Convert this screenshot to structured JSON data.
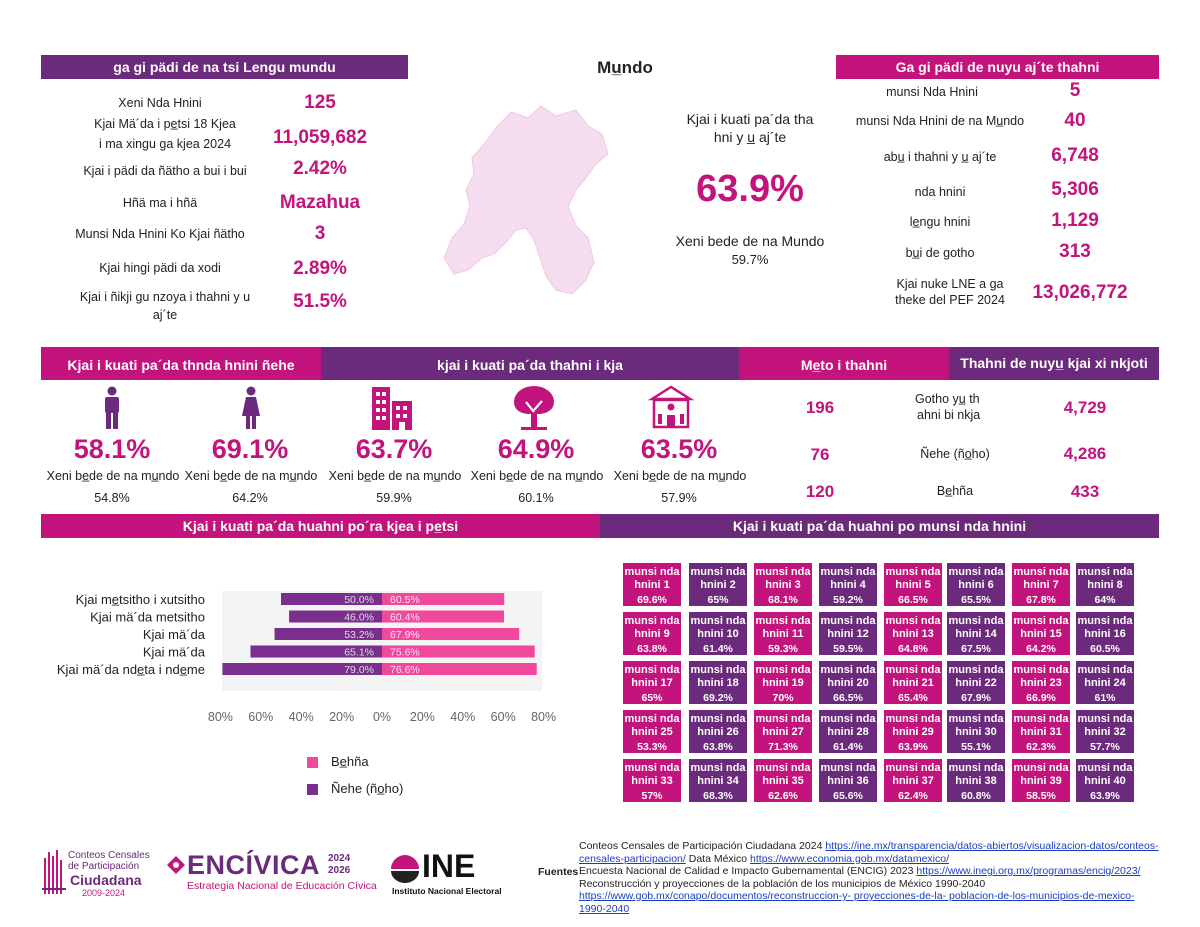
{
  "left_panel": {
    "header": "ga gi pädi de na tsi Lengu mundu",
    "rows": [
      {
        "label": "Xeni Nda Hnini",
        "value": "125"
      },
      {
        "label_lines": [
          "Kjai Mä´da i pe̲tsi 18 Kjea",
          "i ma xingu ga kjea 2024"
        ],
        "value": "11,059,682"
      },
      {
        "label": "Kjai i pädi da ñätho a bui  i bui",
        "value": "2.42%"
      },
      {
        "label": "Hñä ma i hñä",
        "value": "Mazahua"
      },
      {
        "label": "Munsi Nda Hnini Ko Kjai ñätho",
        "value": "3"
      },
      {
        "label": "Kjai hingi pädi da xodi",
        "value": "2.89%"
      },
      {
        "label_lines": [
          "Kjai i ñikji gu nzoya i thahni y u",
          "aj´te"
        ],
        "value": "51.5%"
      }
    ]
  },
  "center_panel": {
    "title": "Mu̲ndo",
    "label_lines": [
      "Kjai i kuati pa´da tha",
      "hni y u̲ aj´te"
    ],
    "value": "63.9%",
    "sub_label": "Xeni bede de na Mundo",
    "sub_value": "59.7%"
  },
  "right_panel": {
    "header": "Ga gi pädi de nuyu aj´te thahni",
    "rows": [
      {
        "label": "munsi Nda Hnini",
        "value": "5"
      },
      {
        "label": "munsi Nda Hnini de na Mu̲ndo",
        "value": "40"
      },
      {
        "label": "abu̲ i thahni y u̲ aj´te",
        "value": "6,748"
      },
      {
        "label": "nda hnini",
        "value": "5,306"
      },
      {
        "label": "le̲ngu hnini",
        "value": "1,129"
      },
      {
        "label": "bu̲i de gotho",
        "value": "313"
      },
      {
        "label_lines": [
          "Kjai nuke LNE a ga",
          "theke del PEF 2024"
        ],
        "value": "13,026,772"
      }
    ]
  },
  "row2": {
    "header_sex": "Kjai i kuati pa´da thnda hnini ñehe",
    "header_locality": "kjai i kuati pa´da thahni i kja",
    "header_meto": "Me̲to i thahni",
    "header_thahni": "Thahni de nuyu̲ kjai xi nkjoti",
    "indicators": [
      {
        "icon": "man-icon",
        "value": "58.1%",
        "label": "Xeni be̲de de na mu̲ndo",
        "sub": "54.8%"
      },
      {
        "icon": "woman-icon",
        "value": "69.1%",
        "label": "Xeni be̲de de na mu̲ndo",
        "sub": "64.2%"
      },
      {
        "icon": "city-buildings-icon",
        "value": "63.7%",
        "label": "Xeni be̲de de na mu̲ndo",
        "sub": "59.9%"
      },
      {
        "icon": "tree-icon",
        "value": "64.9%",
        "label": "Xeni be̲de de na mu̲ndo",
        "sub": "60.1%"
      },
      {
        "icon": "school-building-icon",
        "value": "63.5%",
        "label": "Xeni be̲de de na mu̲ndo",
        "sub": "57.9%"
      }
    ],
    "meto_values": [
      "196",
      "76",
      "120"
    ],
    "thahni_rows": [
      {
        "label_lines": [
          "Gotho yu̲  th",
          "ahni bi nkja"
        ],
        "value": "4,729"
      },
      {
        "label": "Ñehe (ño̲ho)",
        "value": "4,286"
      },
      {
        "label": "Be̲hña",
        "value": "433"
      }
    ]
  },
  "row3": {
    "header_age": "Kjai i kuati pa´da huahni po´ra kjea i  pe̲tsi",
    "header_muni": "Kjai i kuati pa´da huahni po munsi nda hnini"
  },
  "chart_data": {
    "type": "bar",
    "orientation": "horizontal",
    "categories": [
      "Kjai me̲tsitho i xutsitho",
      "Kjai mä´da metsitho",
      "Kjai mä´da",
      "Kjai mä´da",
      "Kjai mä´da nde̲ta  i  nde̲me"
    ],
    "series": [
      {
        "name": "Be̲hña",
        "values": [
          60.5,
          60.4,
          67.9,
          75.6,
          76.6
        ],
        "color": "#f0489b"
      },
      {
        "name": "Ñehe (ño̲ho)",
        "values": [
          50.0,
          46.0,
          53.2,
          65.1,
          79.0
        ],
        "color": "#7a2f8e"
      }
    ],
    "tick_labels": [
      "80%",
      "60%",
      "40%",
      "20%",
      "0%",
      "20%",
      "40%",
      "60%",
      "80%"
    ],
    "xlim": [
      -80,
      80
    ],
    "grid": false,
    "legend": "bottom"
  },
  "municipalities": [
    {
      "name": "munsi nda hnini 1",
      "pct": "69.6%",
      "color": "pink"
    },
    {
      "name": "munsi nda hnini 2",
      "pct": "65%",
      "color": "purple"
    },
    {
      "name": "munsi nda hnini 3",
      "pct": "68.1%",
      "color": "pink"
    },
    {
      "name": "munsi nda hnini 4",
      "pct": "59.2%",
      "color": "purple"
    },
    {
      "name": "munsi nda hnini 5",
      "pct": "66.5%",
      "color": "pink"
    },
    {
      "name": "munsi nda hnini 6",
      "pct": "65.5%",
      "color": "purple"
    },
    {
      "name": "munsi nda hnini 7",
      "pct": "67.8%",
      "color": "pink"
    },
    {
      "name": "munsi nda hnini 8",
      "pct": "64%",
      "color": "purple"
    },
    {
      "name": "munsi nda hnini 9",
      "pct": "63.8%",
      "color": "pink"
    },
    {
      "name": "munsi nda hnini 10",
      "pct": "61.4%",
      "color": "purple"
    },
    {
      "name": "munsi nda hnini 11",
      "pct": "59.3%",
      "color": "pink"
    },
    {
      "name": "munsi nda hnini 12",
      "pct": "59.5%",
      "color": "purple"
    },
    {
      "name": "munsi nda hnini 13",
      "pct": "64.8%",
      "color": "pink"
    },
    {
      "name": "munsi nda hnini 14",
      "pct": "67.5%",
      "color": "purple"
    },
    {
      "name": "munsi nda hnini 15",
      "pct": "64.2%",
      "color": "pink"
    },
    {
      "name": "munsi nda hnini 16",
      "pct": "60.5%",
      "color": "purple"
    },
    {
      "name": "munsi nda hnini 17",
      "pct": "65%",
      "color": "pink"
    },
    {
      "name": "munsi nda hnini 18",
      "pct": "69.2%",
      "color": "purple"
    },
    {
      "name": "munsi nda hnini 19",
      "pct": "70%",
      "color": "pink"
    },
    {
      "name": "munsi nda hnini 20",
      "pct": "66.5%",
      "color": "purple"
    },
    {
      "name": "munsi nda hnini 21",
      "pct": "65.4%",
      "color": "pink"
    },
    {
      "name": "munsi nda hnini 22",
      "pct": "67.9%",
      "color": "purple"
    },
    {
      "name": "munsi nda hnini 23",
      "pct": "66.9%",
      "color": "pink"
    },
    {
      "name": "munsi nda hnini 24",
      "pct": "61%",
      "color": "purple"
    },
    {
      "name": "munsi nda hnini 25",
      "pct": "53.3%",
      "color": "pink"
    },
    {
      "name": "munsi nda hnini 26",
      "pct": "63.8%",
      "color": "purple"
    },
    {
      "name": "munsi nda hnini 27",
      "pct": "71.3%",
      "color": "pink"
    },
    {
      "name": "munsi nda hnini 28",
      "pct": "61.4%",
      "color": "purple"
    },
    {
      "name": "munsi nda hnini 29",
      "pct": "63.9%",
      "color": "pink"
    },
    {
      "name": "munsi nda hnini 30",
      "pct": "55.1%",
      "color": "purple"
    },
    {
      "name": "munsi nda hnini 31",
      "pct": "62.3%",
      "color": "pink"
    },
    {
      "name": "munsi nda hnini 32",
      "pct": "57.7%",
      "color": "purple"
    },
    {
      "name": "munsi nda hnini 33",
      "pct": "57%",
      "color": "pink"
    },
    {
      "name": "munsi nda hnini 34",
      "pct": "68.3%",
      "color": "purple"
    },
    {
      "name": "munsi nda hnini 35",
      "pct": "62.6%",
      "color": "pink"
    },
    {
      "name": "munsi nda hnini 36",
      "pct": "65.6%",
      "color": "purple"
    },
    {
      "name": "munsi nda hnini 37",
      "pct": "62.4%",
      "color": "pink"
    },
    {
      "name": "munsi nda hnini 38",
      "pct": "60.8%",
      "color": "purple"
    },
    {
      "name": "munsi nda hnini 39",
      "pct": "58.5%",
      "color": "pink"
    },
    {
      "name": "munsi nda hnini 40",
      "pct": "63.9%",
      "color": "purple"
    }
  ],
  "footer": {
    "logo_conteos": {
      "line1": "Conteos Censales",
      "line2": "de Participación",
      "line3": "Ciudadana",
      "years": "2009-2024"
    },
    "logo_encivica": {
      "name": "ENCÍVICA",
      "years_top": "2024",
      "years_bottom": "2026",
      "tagline": "Estrategia Nacional de Educación Cívica"
    },
    "logo_ine": {
      "name": "INE",
      "tagline": "Instituto Nacional Electoral"
    },
    "fuentes_label": "Fuentes",
    "sources": [
      {
        "text": "Conteos Censales de Participación Ciudadana 2024 ",
        "link": "https://ine.mx/transparencia/datos-abiertos/visualizacion-datos/conteos-censales-participacion/",
        "after": " Data México ",
        "link2": "https://www.economia.gob.mx/datamexico/"
      },
      {
        "text": "Encuesta Nacional de Calidad e Impacto Gubernamental (ENCIG) 2023 ",
        "link": "https://www.inegi.org.mx/programas/encig/2023/"
      },
      {
        "text": "Reconstrucción y proyecciones de la población de los municipios de México 1990-2040 ",
        "link": "https://www.gob.mx/conapo/documentos/reconstruccion-y- proyecciones-de-la- poblacion-de-los-municipios-de-mexico-1990-2040"
      }
    ]
  },
  "colors": {
    "pink": "#c2147c",
    "purple": "#6b2a7b",
    "map_fill": "#f6dcef"
  }
}
